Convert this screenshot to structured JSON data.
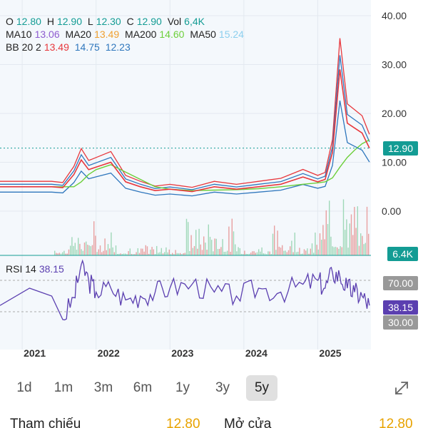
{
  "ohlc": {
    "o_label": "O",
    "o": "12.80",
    "h_label": "H",
    "h": "12.90",
    "l_label": "L",
    "l": "12.30",
    "c_label": "C",
    "c": "12.90",
    "vol_label": "Vol",
    "vol": "6,4K"
  },
  "ma": {
    "ma10_label": "MA10",
    "ma10": "13.06",
    "ma20_label": "MA20",
    "ma20": "13.49",
    "ma200_label": "MA200",
    "ma200": "14.60",
    "ma50_label": "MA50",
    "ma50": "15.24"
  },
  "bb": {
    "label": "BB 20 2",
    "upper": "13.49",
    "middle": "14.75",
    "lower": "12.23"
  },
  "rsi": {
    "label": "RSI 14",
    "value": "38.15",
    "upper_level": "70.00",
    "lower_level": "30.00"
  },
  "price_badge": "12.90",
  "volume_badge": "6.4K",
  "range_tabs": [
    {
      "label": "1d",
      "active": false
    },
    {
      "label": "1m",
      "active": false
    },
    {
      "label": "3m",
      "active": false
    },
    {
      "label": "6m",
      "active": false
    },
    {
      "label": "1y",
      "active": false
    },
    {
      "label": "3y",
      "active": false
    },
    {
      "label": "5y",
      "active": true
    }
  ],
  "footer": {
    "ref_label": "Tham chiếu",
    "ref_value": "12.80",
    "open_label": "Mở cửa",
    "open_value": "12.80"
  },
  "colors": {
    "ma10": "#8e5bd0",
    "ma20": "#f0a030",
    "ma200": "#6ccf3a",
    "ma50": "#8ccfee",
    "bb_upper": "#e8383d",
    "bb_middle": "#2f77bd",
    "bb_lower": "#2f77bd",
    "price": "#e8383d",
    "rsi": "#5b3fb0",
    "accent_green": "#139c94"
  },
  "chart_data": {
    "type": "line",
    "title": "",
    "x_ticks": [
      "2021",
      "2022",
      "2023",
      "2024",
      "2025"
    ],
    "price_axis": {
      "ticks": [
        "40.00",
        "30.00",
        "20.00",
        "10.00",
        "0.00"
      ],
      "ylim": [
        0,
        40
      ]
    },
    "rsi_axis": {
      "ticks": [
        "70.00",
        "30.00"
      ],
      "ylim": [
        0,
        100
      ]
    },
    "x": [
      2020.7,
      2021.1,
      2021.4,
      2021.55,
      2021.7,
      2021.8,
      2021.9,
      2022.0,
      2022.2,
      2022.4,
      2022.6,
      2022.8,
      2023.0,
      2023.3,
      2023.6,
      2023.9,
      2024.2,
      2024.5,
      2024.8,
      2025.0,
      2025.1,
      2025.2,
      2025.3,
      2025.4,
      2025.5,
      2025.6,
      2025.7
    ],
    "series": [
      {
        "name": "C",
        "values": [
          5.0,
          5.0,
          5.0,
          4.8,
          7.5,
          10.5,
          8.5,
          9.0,
          10.0,
          6.0,
          5.0,
          4.2,
          4.5,
          4.0,
          5.0,
          4.5,
          5.0,
          5.5,
          7.0,
          6.0,
          6.5,
          12.0,
          29.0,
          18.0,
          17.0,
          16.0,
          12.9
        ]
      }
    ],
    "rsi_series": [
      {
        "name": "RSI 14",
        "values": [
          38,
          60,
          50,
          20,
          48,
          90,
          70,
          55,
          60,
          45,
          50,
          55,
          60,
          65,
          55,
          50,
          60,
          55,
          65,
          70,
          60,
          80,
          75,
          60,
          55,
          50,
          38
        ]
      }
    ]
  }
}
